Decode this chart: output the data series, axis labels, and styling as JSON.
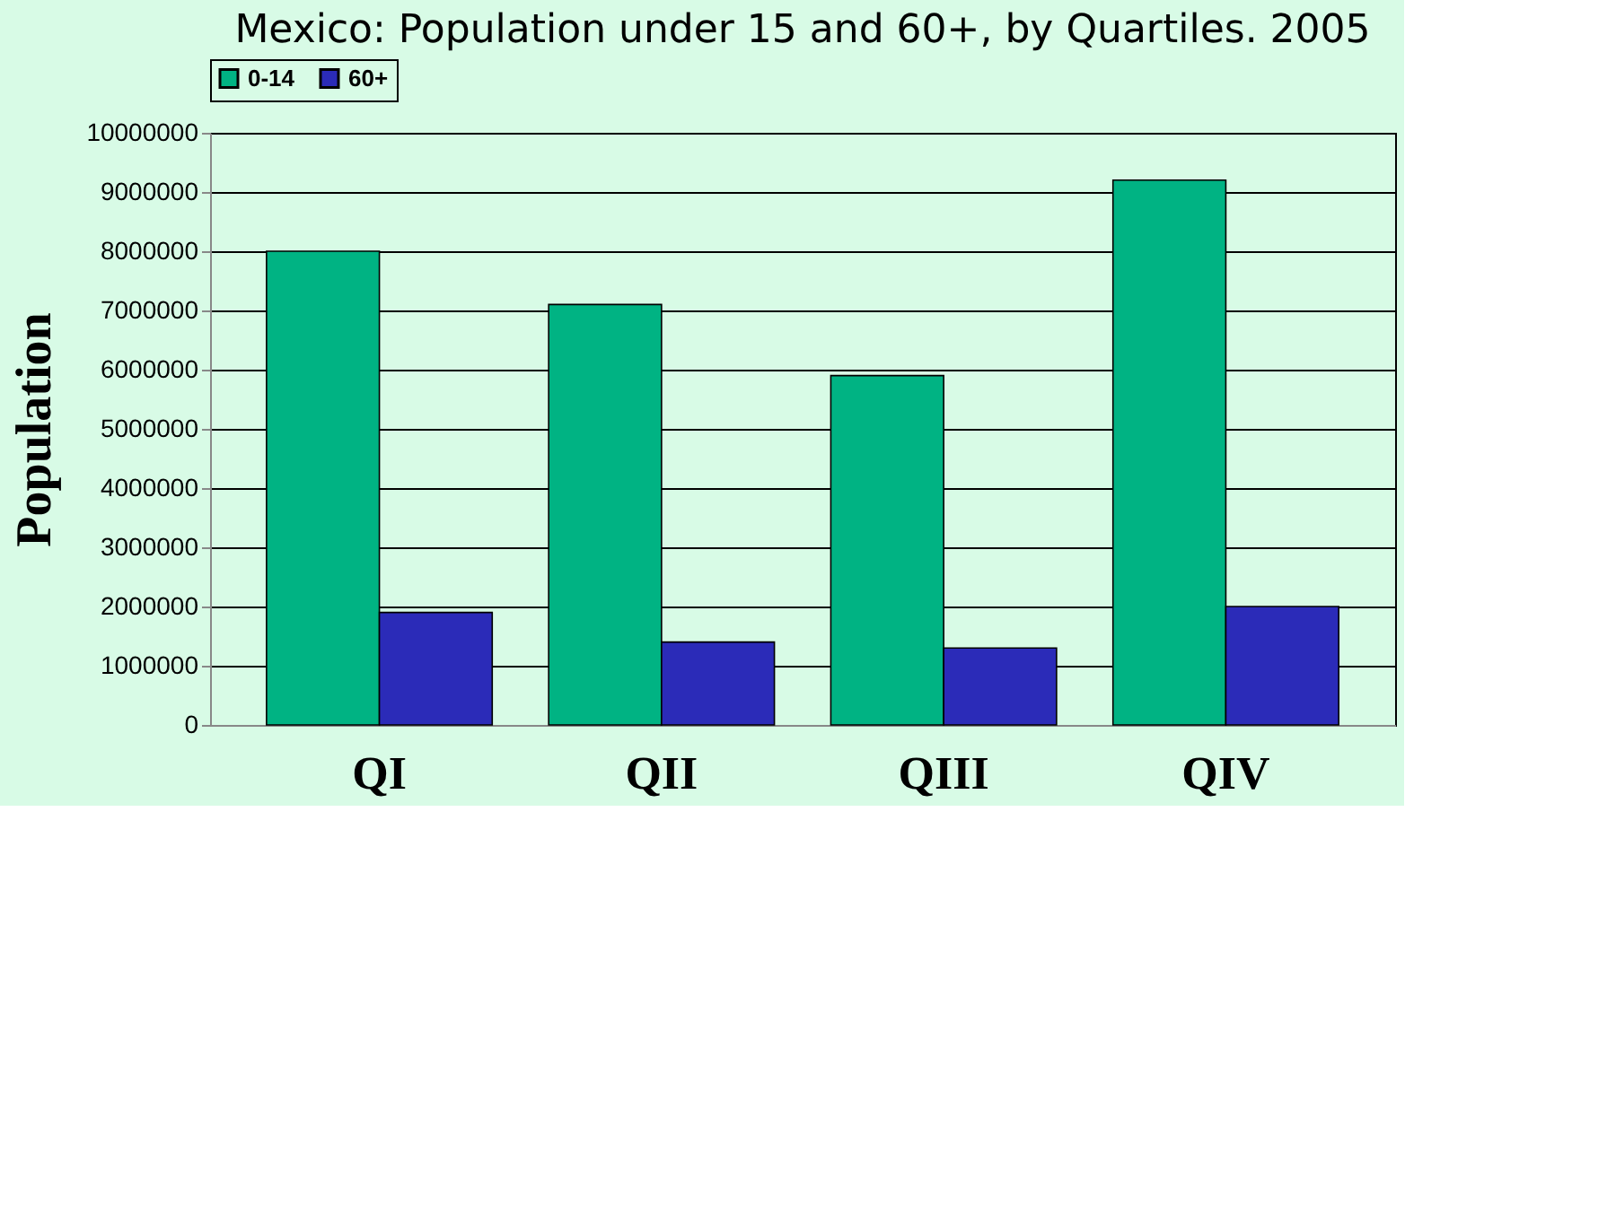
{
  "chart_data": {
    "type": "bar",
    "title": "Mexico: Population under 15 and 60+, by Quartiles. 2005",
    "ylabel": "Population",
    "categories": [
      "QI",
      "QII",
      "QIII",
      "QIV"
    ],
    "series": [
      {
        "name": "0-14",
        "color": "#00b383",
        "values": [
          8000000,
          7100000,
          5900000,
          9200000
        ]
      },
      {
        "name": "60+",
        "color": "#2b2bb8",
        "values": [
          1900000,
          1400000,
          1300000,
          2000000
        ]
      }
    ],
    "ylim": [
      0,
      10000000
    ],
    "yticks": [
      0,
      1000000,
      2000000,
      3000000,
      4000000,
      5000000,
      6000000,
      7000000,
      8000000,
      9000000,
      10000000
    ],
    "grid": "y",
    "legend": "top"
  }
}
